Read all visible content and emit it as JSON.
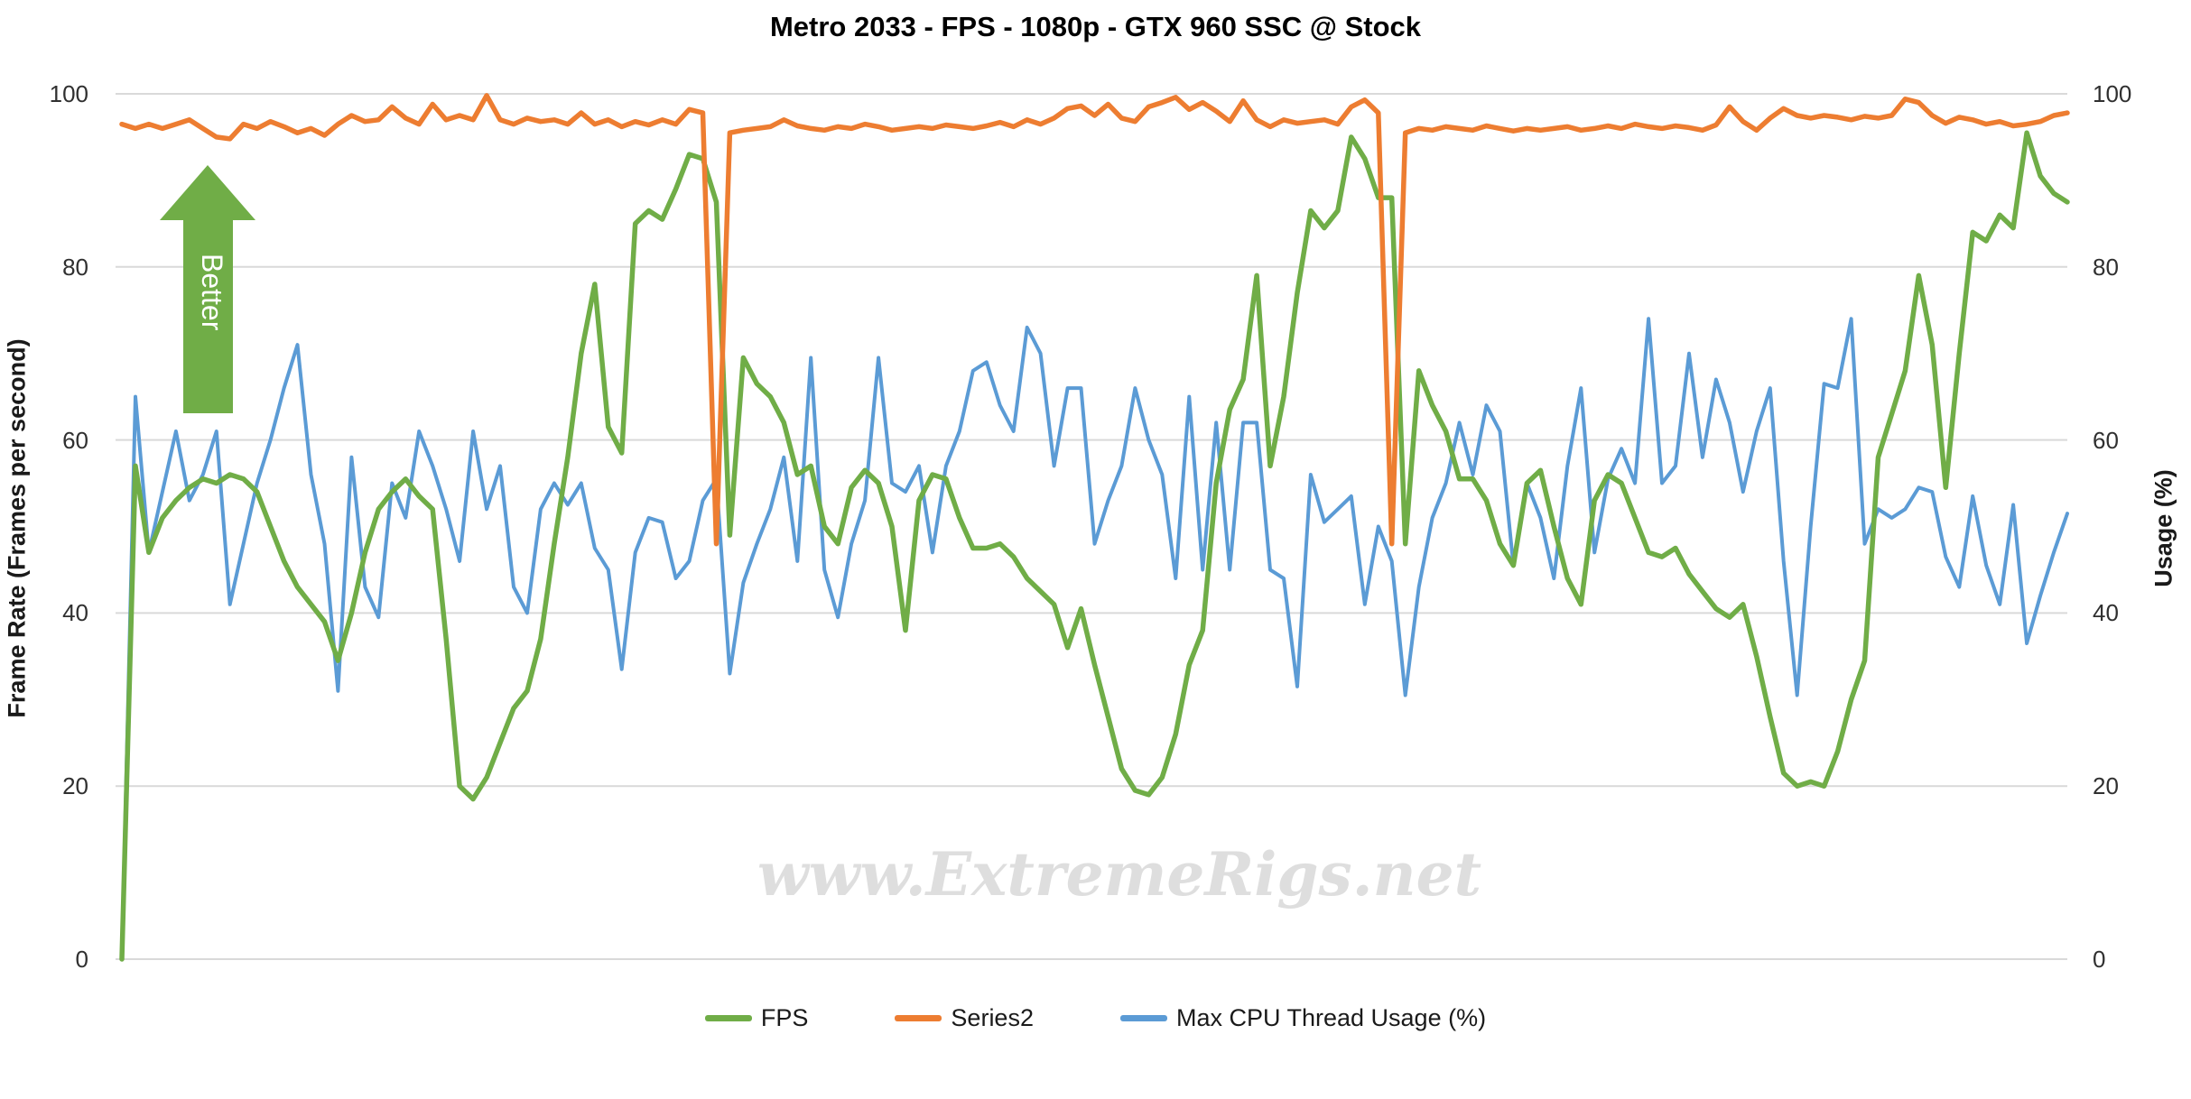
{
  "chart_data": {
    "type": "line",
    "title": "Metro 2033 - FPS - 1080p - GTX 960 SSC @ Stock",
    "xlabel": "",
    "x_axis": {
      "labels_visible": false,
      "points": 145
    },
    "y_left": {
      "title": "Frame Rate (Frames per second)",
      "min": 0,
      "max": 100,
      "ticks": [
        100,
        80,
        60,
        40,
        20,
        0
      ]
    },
    "y_right": {
      "title": "Usage (%)",
      "min": 0,
      "max": 100,
      "ticks": [
        100,
        80,
        60,
        40,
        20,
        0
      ]
    },
    "grid": true,
    "legend_position": "bottom",
    "series": [
      {
        "name": "FPS",
        "color": "#70AD47",
        "axis": "left",
        "stroke_width": 5.5,
        "values": [
          0,
          57,
          47,
          51,
          53,
          54.5,
          55.5,
          55,
          56,
          55.5,
          54,
          50,
          46,
          43,
          41,
          39,
          34.5,
          40,
          47,
          52,
          54,
          55.5,
          53.5,
          52,
          37,
          20,
          18.5,
          21,
          25,
          29,
          31,
          37,
          48,
          58,
          70,
          78,
          61.5,
          58.5,
          85,
          86.5,
          85.5,
          89,
          93,
          92.5,
          87.5,
          49,
          69.5,
          66.5,
          65,
          62,
          56,
          57,
          50,
          48,
          54.5,
          56.5,
          55,
          50,
          38,
          53,
          56,
          55.5,
          51,
          47.5,
          47.5,
          48,
          46.5,
          44,
          42.5,
          41,
          36,
          40.5,
          34,
          28,
          22,
          19.5,
          19,
          21,
          26,
          34,
          38,
          55,
          63.5,
          67,
          79,
          57,
          65,
          77,
          86.5,
          84.5,
          86.5,
          95,
          92.5,
          88,
          88,
          48,
          68,
          64,
          61,
          55.5,
          55.5,
          53,
          48,
          45.5,
          55,
          56.5,
          50,
          44,
          41,
          53,
          56,
          55,
          51,
          47,
          46.5,
          47.5,
          44.5,
          42.5,
          40.5,
          39.5,
          41,
          35,
          28,
          21.5,
          20,
          20.5,
          20,
          24,
          30,
          34.5,
          58,
          63,
          68,
          79,
          71,
          54.5,
          70,
          84,
          83,
          86,
          84.5,
          95.5,
          90.5,
          88.5,
          87.5
        ]
      },
      {
        "name": "Series2",
        "color": "#ED7D31",
        "axis": "left",
        "stroke_width": 5.5,
        "values": [
          96.5,
          96,
          96.5,
          96,
          96.5,
          97,
          96,
          95,
          94.8,
          96.5,
          96,
          96.8,
          96.2,
          95.5,
          96,
          95.2,
          96.5,
          97.5,
          96.8,
          97,
          98.5,
          97.2,
          96.5,
          98.8,
          97,
          97.5,
          97,
          99.8,
          97,
          96.5,
          97.2,
          96.8,
          97,
          96.5,
          97.8,
          96.5,
          97,
          96.2,
          96.8,
          96.4,
          97,
          96.5,
          98.2,
          97.8,
          48,
          95.5,
          95.8,
          96,
          96.2,
          97,
          96.3,
          96,
          95.8,
          96.2,
          96,
          96.5,
          96.2,
          95.8,
          96,
          96.2,
          96,
          96.4,
          96.2,
          96,
          96.3,
          96.7,
          96.2,
          97,
          96.5,
          97.2,
          98.3,
          98.6,
          97.5,
          98.8,
          97.2,
          96.8,
          98.5,
          99,
          99.6,
          98.2,
          99,
          98,
          96.8,
          99.2,
          97,
          96.2,
          97,
          96.6,
          96.8,
          97,
          96.5,
          98.5,
          99.3,
          97.8,
          48,
          95.5,
          96,
          95.8,
          96.2,
          96,
          95.8,
          96.3,
          96,
          95.7,
          96,
          95.8,
          96,
          96.2,
          95.8,
          96,
          96.3,
          96,
          96.5,
          96.2,
          96,
          96.3,
          96.1,
          95.8,
          96.4,
          98.5,
          96.8,
          95.8,
          97.2,
          98.3,
          97.5,
          97.2,
          97.5,
          97.3,
          97,
          97.4,
          97.2,
          97.5,
          99.4,
          99,
          97.5,
          96.6,
          97.3,
          97,
          96.5,
          96.8,
          96.3,
          96.5,
          96.8,
          97.5,
          97.8
        ]
      },
      {
        "name": "Max CPU Thread Usage (%)",
        "color": "#5B9BD5",
        "axis": "right",
        "stroke_width": 4,
        "values": [
          0,
          65,
          47,
          54,
          61,
          53,
          56,
          61,
          41,
          48,
          55,
          60,
          66,
          71,
          56,
          48,
          31,
          58,
          43,
          39.5,
          55,
          51,
          61,
          57,
          52,
          46,
          61,
          52,
          57,
          43,
          40,
          52,
          55,
          52.5,
          55,
          47.5,
          45,
          33.5,
          47,
          51,
          50.5,
          44,
          46,
          53,
          55.5,
          33,
          43.5,
          48,
          52,
          58,
          46,
          69.5,
          45,
          39.5,
          48,
          53,
          69.5,
          55,
          54,
          57,
          47,
          57,
          61,
          68,
          69,
          64,
          61,
          73,
          70,
          57,
          66,
          66,
          48,
          53,
          57,
          66,
          60,
          56,
          44,
          65,
          45,
          62,
          45,
          62,
          62,
          45,
          44,
          31.5,
          56,
          50.5,
          52,
          53.5,
          41,
          50,
          46,
          30.5,
          43,
          51,
          55,
          62,
          56,
          64,
          61,
          45.5,
          55,
          51,
          44,
          57,
          66,
          47,
          55.5,
          59,
          55,
          74,
          55,
          57,
          70,
          58,
          67,
          62,
          54,
          61,
          66,
          46,
          30.5,
          50,
          66.5,
          66,
          74,
          48,
          52,
          51,
          52,
          54.5,
          54,
          46.5,
          43,
          53.5,
          45.5,
          41,
          52.5,
          36.5,
          42,
          47,
          51.5
        ]
      }
    ]
  },
  "annotations": {
    "better_arrow": {
      "label": "Better",
      "fill": "#70AD47",
      "text_color": "#FFFFFF"
    }
  },
  "watermark": "www.ExtremeRigs.net",
  "colors": {
    "background": "#FFFFFF",
    "gridline": "#D9D9D9",
    "tick_label": "#303030",
    "title": "#000000",
    "watermark": "#DEDEDE"
  }
}
